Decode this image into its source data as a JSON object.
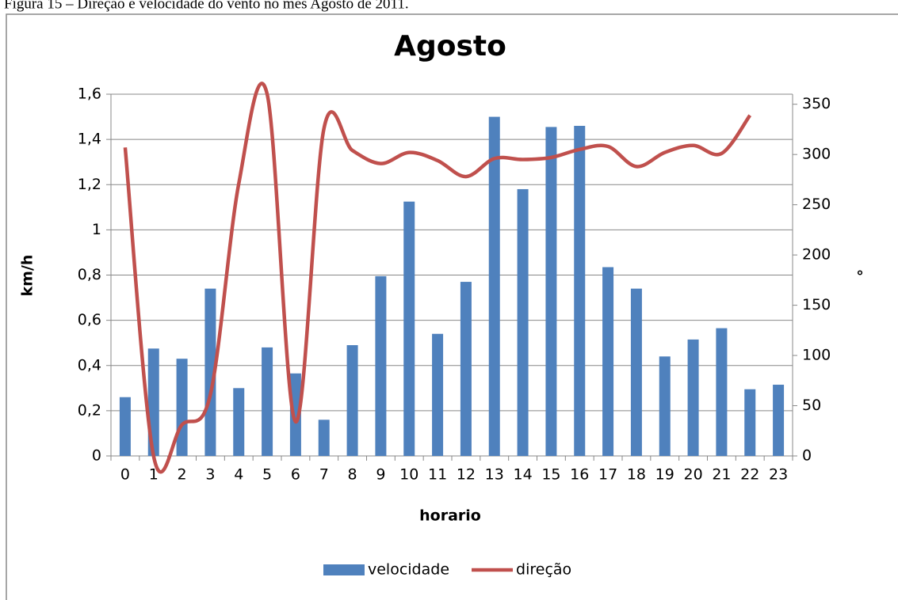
{
  "caption": "Figura 15 – Direção e velocidade do vento no mês Agosto de 2011.",
  "chart_data": {
    "type": "bar",
    "title": "Agosto",
    "x_label": "horario",
    "y_label": "km/h",
    "y2_label": "°",
    "categories": [
      "0",
      "1",
      "2",
      "3",
      "4",
      "5",
      "6",
      "7",
      "8",
      "9",
      "10",
      "11",
      "12",
      "13",
      "14",
      "15",
      "16",
      "17",
      "18",
      "19",
      "20",
      "21",
      "22",
      "23"
    ],
    "series": [
      {
        "name": "velocidade",
        "type": "bar",
        "color": "#4f81bd",
        "values": [
          0.26,
          0.475,
          0.43,
          0.74,
          0.3,
          0.48,
          0.365,
          0.16,
          0.49,
          0.795,
          1.125,
          0.54,
          0.77,
          1.5,
          1.18,
          1.455,
          1.46,
          0.835,
          0.74,
          0.44,
          0.515,
          0.565,
          0.295,
          0.315
        ]
      },
      {
        "name": "direção",
        "type": "line",
        "axis": "y2",
        "color": "#c0504d",
        "smooth": true,
        "values": [
          307,
          0,
          31,
          61,
          271,
          360,
          34,
          326,
          304,
          291,
          302,
          294,
          278,
          296,
          295,
          297,
          305,
          308,
          288,
          302,
          309,
          301,
          339,
          null
        ]
      }
    ],
    "ylim": [
      0,
      1.6
    ],
    "yticks": [
      0,
      {
        "value": 0.2,
        "label": "0,2"
      },
      {
        "value": 0.4,
        "label": "0,4"
      },
      {
        "value": 0.6,
        "label": "0,6"
      },
      {
        "value": 0.8,
        "label": "0,8"
      },
      1,
      {
        "value": 1.2,
        "label": "1,2"
      },
      {
        "value": 1.4,
        "label": "1,4"
      },
      {
        "value": 1.6,
        "label": "1,6"
      }
    ],
    "y2lim": [
      0,
      360
    ],
    "y2ticks": [
      0,
      50,
      100,
      150,
      200,
      250,
      300,
      350
    ],
    "grid": true,
    "legend": "bottom"
  }
}
